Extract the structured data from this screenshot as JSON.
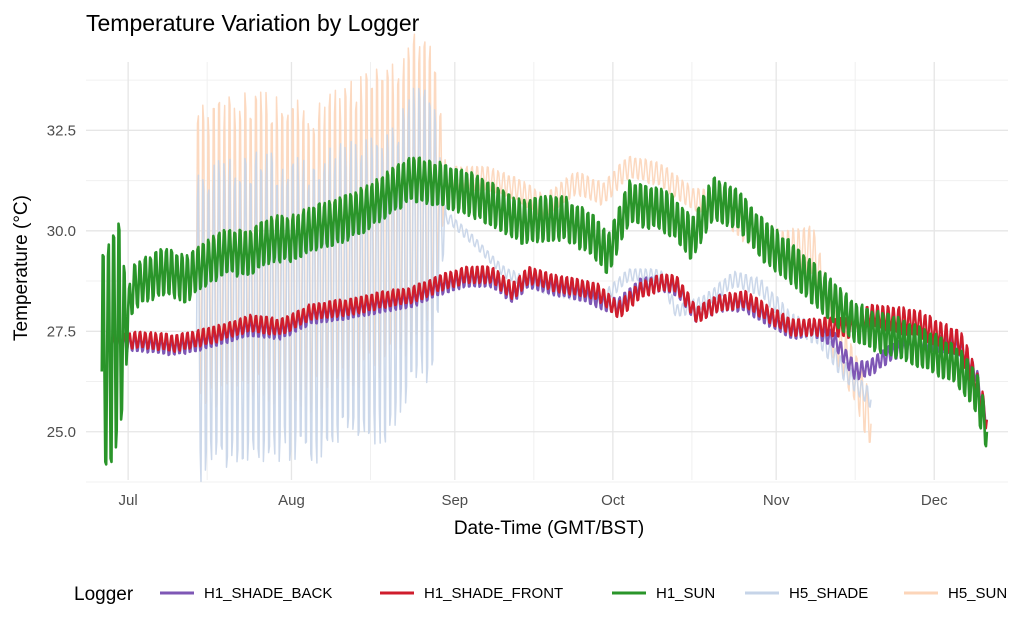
{
  "chart_data": {
    "type": "line",
    "title": "Temperature Variation by Logger",
    "xlabel": "Date-Time (GMT/BST)",
    "ylabel": "Temperature (°C)",
    "x_range": [
      "2023-06-23",
      "2023-12-15"
    ],
    "ylim": [
      23.8,
      34.2
    ],
    "x_tick_labels": [
      {
        "date": "2023-07-01",
        "label": "Jul"
      },
      {
        "date": "2023-08-01",
        "label": "Aug"
      },
      {
        "date": "2023-09-01",
        "label": "Sep"
      },
      {
        "date": "2023-10-01",
        "label": "Oct"
      },
      {
        "date": "2023-11-01",
        "label": "Nov"
      },
      {
        "date": "2023-12-01",
        "label": "Dec"
      }
    ],
    "x_minor_gridlines": [
      "2023-06-15",
      "2023-07-16",
      "2023-08-16",
      "2023-09-16",
      "2023-10-16",
      "2023-11-16",
      "2023-12-16"
    ],
    "y_ticks": [
      25.0,
      27.5,
      30.0,
      32.5
    ],
    "y_tick_labels": [
      "25.0",
      "27.5",
      "30.0",
      "32.5"
    ],
    "y_minor_gridlines": [
      23.75,
      26.25,
      28.75,
      31.25,
      33.75
    ],
    "grid": true,
    "legend": {
      "title": "Logger",
      "position": "bottom"
    },
    "series": [
      {
        "name": "H5_SUN",
        "color": "#fcd5b9",
        "width": 1.5,
        "opacity": 0.9,
        "osc": [
          [
            0.0,
            4.5
          ],
          [
            0.35,
            4.5
          ],
          [
            0.37,
            0.35
          ],
          [
            0.75,
            0.35
          ],
          [
            0.95,
            0.8
          ]
        ],
        "x": [
          "2023-07-14",
          "2023-07-20",
          "2023-07-28",
          "2023-08-05",
          "2023-08-12",
          "2023-08-20",
          "2023-08-24",
          "2023-08-31",
          "2023-09-07",
          "2023-09-12",
          "2023-09-18",
          "2023-09-24",
          "2023-09-29",
          "2023-10-04",
          "2023-10-10",
          "2023-10-16",
          "2023-10-21",
          "2023-10-26",
          "2023-11-02",
          "2023-11-08",
          "2023-11-12",
          "2023-11-16",
          "2023-11-19"
        ],
        "y": [
          29.2,
          29.5,
          29.6,
          29.3,
          29.9,
          30.3,
          31.0,
          31.3,
          31.3,
          31.1,
          30.6,
          31.2,
          30.9,
          31.6,
          31.4,
          30.8,
          30.7,
          30.1,
          29.5,
          29.5,
          27.4,
          26.4,
          25.2
        ]
      },
      {
        "name": "H5_SHADE",
        "color": "#c6d4e8",
        "width": 1.5,
        "opacity": 0.9,
        "osc": [
          [
            0.0,
            4.5
          ],
          [
            0.35,
            4.5
          ],
          [
            0.37,
            0.15
          ],
          [
            0.75,
            0.2
          ],
          [
            0.9,
            0.3
          ]
        ],
        "x": [
          "2023-07-14",
          "2023-07-20",
          "2023-07-28",
          "2023-08-05",
          "2023-08-12",
          "2023-08-20",
          "2023-08-24",
          "2023-08-31",
          "2023-09-05",
          "2023-09-10",
          "2023-09-15",
          "2023-09-20",
          "2023-09-25",
          "2023-09-29",
          "2023-10-04",
          "2023-10-10",
          "2023-10-13",
          "2023-10-18",
          "2023-10-24",
          "2023-10-29",
          "2023-11-04",
          "2023-11-09",
          "2023-11-14",
          "2023-11-19"
        ],
        "y": [
          27.5,
          28.0,
          28.1,
          28.0,
          28.4,
          28.6,
          29.9,
          30.3,
          29.7,
          29.0,
          28.7,
          28.5,
          28.4,
          28.3,
          28.9,
          28.9,
          28.0,
          28.2,
          28.8,
          28.6,
          27.7,
          27.4,
          26.5,
          25.8
        ]
      },
      {
        "name": "H1_SHADE_BACK",
        "color": "#7e57b5",
        "width": 2.2,
        "opacity": 1,
        "osc": [
          [
            0.0,
            0.25
          ],
          [
            1.0,
            0.25
          ]
        ],
        "x": [
          "2023-06-28",
          "2023-07-03",
          "2023-07-10",
          "2023-07-17",
          "2023-07-24",
          "2023-07-30",
          "2023-08-05",
          "2023-08-12",
          "2023-08-19",
          "2023-08-24",
          "2023-08-29",
          "2023-09-03",
          "2023-09-08",
          "2023-09-12",
          "2023-09-15",
          "2023-09-20",
          "2023-09-24",
          "2023-09-28",
          "2023-10-02",
          "2023-10-06",
          "2023-10-10",
          "2023-10-13",
          "2023-10-17",
          "2023-10-21",
          "2023-10-26",
          "2023-10-31",
          "2023-11-04",
          "2023-11-08",
          "2023-11-12",
          "2023-11-16",
          "2023-11-19",
          "2023-11-23",
          "2023-11-28",
          "2023-12-02",
          "2023-12-06",
          "2023-12-09",
          "2023-12-11"
        ],
        "y": [
          27.2,
          27.2,
          27.1,
          27.3,
          27.6,
          27.5,
          27.9,
          28.0,
          28.2,
          28.3,
          28.6,
          28.8,
          28.8,
          28.4,
          28.8,
          28.6,
          28.5,
          28.3,
          28.1,
          28.6,
          28.7,
          28.6,
          27.9,
          28.2,
          28.2,
          27.8,
          27.5,
          27.6,
          27.3,
          26.5,
          26.6,
          27.0,
          27.2,
          27.2,
          27.1,
          26.4,
          25.3
        ]
      },
      {
        "name": "H1_SHADE_FRONT",
        "color": "#cf1d2c",
        "width": 2.2,
        "opacity": 1,
        "osc": [
          [
            0.0,
            0.25
          ],
          [
            0.8,
            0.25
          ],
          [
            0.9,
            0.4
          ],
          [
            1.0,
            0.4
          ]
        ],
        "x": [
          "2023-06-28",
          "2023-07-03",
          "2023-07-10",
          "2023-07-17",
          "2023-07-24",
          "2023-07-30",
          "2023-08-05",
          "2023-08-12",
          "2023-08-19",
          "2023-08-24",
          "2023-08-29",
          "2023-09-03",
          "2023-09-08",
          "2023-09-12",
          "2023-09-15",
          "2023-09-20",
          "2023-09-24",
          "2023-09-28",
          "2023-10-02",
          "2023-10-06",
          "2023-10-10",
          "2023-10-13",
          "2023-10-17",
          "2023-10-21",
          "2023-10-26",
          "2023-10-31",
          "2023-11-04",
          "2023-11-08",
          "2023-11-12",
          "2023-11-16",
          "2023-11-19",
          "2023-11-23",
          "2023-11-28",
          "2023-12-02",
          "2023-12-06",
          "2023-12-09",
          "2023-12-11"
        ],
        "y": [
          27.2,
          27.3,
          27.2,
          27.4,
          27.7,
          27.6,
          28.0,
          28.1,
          28.3,
          28.4,
          28.7,
          28.9,
          28.9,
          28.5,
          28.9,
          28.7,
          28.6,
          28.5,
          28.0,
          28.5,
          28.7,
          28.7,
          27.9,
          28.2,
          28.3,
          27.9,
          27.6,
          27.6,
          27.6,
          27.6,
          27.9,
          27.8,
          27.7,
          27.4,
          27.2,
          26.2,
          25.3
        ]
      },
      {
        "name": "H1_SUN",
        "color": "#2a952a",
        "width": 2.6,
        "opacity": 1,
        "osc": [
          [
            0.0,
            3.5
          ],
          [
            0.02,
            3.5
          ],
          [
            0.03,
            0.7
          ],
          [
            1.0,
            0.6
          ]
        ],
        "x": [
          "2023-06-26",
          "2023-06-28",
          "2023-06-30",
          "2023-07-02",
          "2023-07-05",
          "2023-07-08",
          "2023-07-12",
          "2023-07-16",
          "2023-07-20",
          "2023-07-24",
          "2023-07-28",
          "2023-08-01",
          "2023-08-06",
          "2023-08-11",
          "2023-08-16",
          "2023-08-20",
          "2023-08-24",
          "2023-08-28",
          "2023-09-02",
          "2023-09-06",
          "2023-09-10",
          "2023-09-14",
          "2023-09-18",
          "2023-09-22",
          "2023-09-27",
          "2023-09-30",
          "2023-10-04",
          "2023-10-08",
          "2023-10-12",
          "2023-10-16",
          "2023-10-20",
          "2023-10-25",
          "2023-10-30",
          "2023-11-04",
          "2023-11-08",
          "2023-11-12",
          "2023-11-16",
          "2023-11-20",
          "2023-11-25",
          "2023-11-30",
          "2023-12-05",
          "2023-12-09",
          "2023-12-11"
        ],
        "y": [
          26.5,
          27.3,
          27.4,
          28.6,
          28.8,
          29.0,
          28.8,
          29.2,
          29.5,
          29.4,
          29.8,
          29.8,
          30.1,
          30.3,
          30.6,
          31.0,
          31.3,
          31.2,
          31.0,
          30.8,
          30.5,
          30.2,
          30.3,
          30.3,
          29.9,
          29.4,
          30.7,
          30.6,
          30.4,
          29.8,
          30.8,
          30.5,
          29.7,
          29.2,
          28.7,
          28.2,
          27.7,
          27.5,
          27.3,
          27.0,
          26.7,
          26.0,
          25.0
        ]
      }
    ]
  }
}
